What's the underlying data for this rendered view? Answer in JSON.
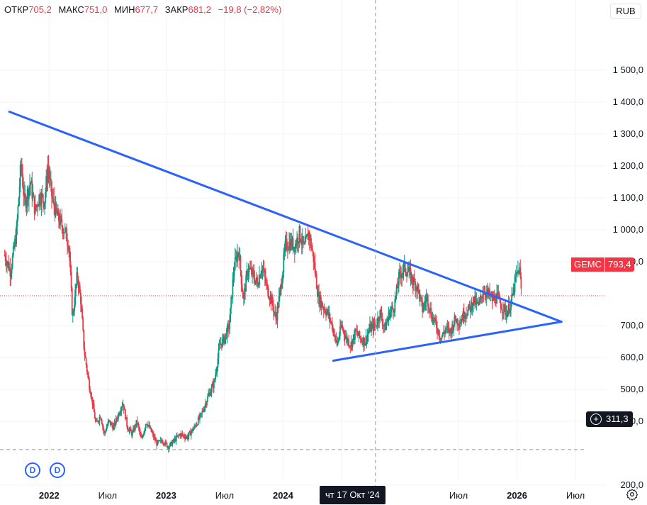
{
  "legend": {
    "open_label": "ОТКР",
    "open_value": "705,2",
    "high_label": "МАКС",
    "high_value": "751,0",
    "low_label": "МИН",
    "low_value": "677,7",
    "close_label": "ЗАКР",
    "close_value": "681,2",
    "change": "−19,8 (−2,82%)"
  },
  "currency": "RUB",
  "ticker": {
    "symbol": "GEMC",
    "price": "793,4"
  },
  "crosshair": {
    "price": "311,3",
    "date": "чт 17 Окт '24",
    "plus_icon": "+"
  },
  "events": [
    {
      "label": "D"
    },
    {
      "label": "D"
    }
  ],
  "colors": {
    "up": "#089981",
    "down": "#f23645",
    "trendline": "#2962ff",
    "crosshair": "#9598a1"
  },
  "icons": {
    "settings": "gear-icon"
  },
  "chart_data": {
    "type": "candlestick",
    "y_ticks": [
      {
        "value": 200,
        "label": "200,0"
      },
      {
        "value": 400,
        "label": "400,0"
      },
      {
        "value": 500,
        "label": "500,0"
      },
      {
        "value": 600,
        "label": "600,0"
      },
      {
        "value": 700,
        "label": "700,0"
      },
      {
        "value": 900,
        "label": "900,0"
      },
      {
        "value": 1000,
        "label": "1 000,0"
      },
      {
        "value": 1100,
        "label": "1 100,0"
      },
      {
        "value": 1200,
        "label": "1 200,0"
      },
      {
        "value": 1300,
        "label": "1 300,0"
      },
      {
        "value": 1400,
        "label": "1 400,0"
      },
      {
        "value": 1500,
        "label": "1 500,0"
      }
    ],
    "x_ticks": [
      {
        "value": 2022.0,
        "label": "2022",
        "bold": true
      },
      {
        "value": 2022.5,
        "label": "Июл",
        "bold": false
      },
      {
        "value": 2023.0,
        "label": "2023",
        "bold": true
      },
      {
        "value": 2023.5,
        "label": "Июл",
        "bold": false
      },
      {
        "value": 2024.0,
        "label": "2024",
        "bold": true
      },
      {
        "value": 2024.5,
        "label": "И",
        "bold": false
      },
      {
        "value": 2025.5,
        "label": "Июл",
        "bold": false
      },
      {
        "value": 2026.0,
        "label": "2026",
        "bold": true
      },
      {
        "value": 2026.5,
        "label": "Июл",
        "bold": false
      }
    ],
    "xlim": [
      2021.58,
      2026.76
    ],
    "ylim": [
      160,
      1560
    ],
    "last_price": 793.4,
    "crosshair": {
      "x": 2024.79,
      "y": 311.3
    },
    "trendlines": [
      {
        "x1": 2021.66,
        "y1": 1370,
        "x2": 2026.38,
        "y2": 712
      },
      {
        "x1": 2024.43,
        "y1": 590,
        "x2": 2026.38,
        "y2": 712
      }
    ],
    "price_path": [
      [
        2021.62,
        920
      ],
      [
        2021.67,
        870
      ],
      [
        2021.72,
        990
      ],
      [
        2021.76,
        1210
      ],
      [
        2021.79,
        1080
      ],
      [
        2021.84,
        1150
      ],
      [
        2021.88,
        1060
      ],
      [
        2021.92,
        1110
      ],
      [
        2021.96,
        1090
      ],
      [
        2021.99,
        1200
      ],
      [
        2022.02,
        1110
      ],
      [
        2022.06,
        1050
      ],
      [
        2022.1,
        1020
      ],
      [
        2022.14,
        990
      ],
      [
        2022.17,
        950
      ],
      [
        2022.2,
        720
      ],
      [
        2022.24,
        860
      ],
      [
        2022.27,
        780
      ],
      [
        2022.3,
        620
      ],
      [
        2022.34,
        520
      ],
      [
        2022.37,
        460
      ],
      [
        2022.4,
        390
      ],
      [
        2022.44,
        420
      ],
      [
        2022.47,
        360
      ],
      [
        2022.51,
        400
      ],
      [
        2022.55,
        380
      ],
      [
        2022.59,
        420
      ],
      [
        2022.63,
        460
      ],
      [
        2022.67,
        380
      ],
      [
        2022.71,
        360
      ],
      [
        2022.75,
        400
      ],
      [
        2022.79,
        340
      ],
      [
        2022.83,
        400
      ],
      [
        2022.87,
        370
      ],
      [
        2022.92,
        330
      ],
      [
        2022.97,
        340
      ],
      [
        2023.02,
        320
      ],
      [
        2023.07,
        340
      ],
      [
        2023.12,
        360
      ],
      [
        2023.18,
        350
      ],
      [
        2023.24,
        380
      ],
      [
        2023.3,
        420
      ],
      [
        2023.36,
        480
      ],
      [
        2023.41,
        520
      ],
      [
        2023.46,
        640
      ],
      [
        2023.5,
        660
      ],
      [
        2023.54,
        700
      ],
      [
        2023.58,
        880
      ],
      [
        2023.62,
        940
      ],
      [
        2023.66,
        780
      ],
      [
        2023.7,
        880
      ],
      [
        2023.74,
        860
      ],
      [
        2023.78,
        830
      ],
      [
        2023.82,
        890
      ],
      [
        2023.86,
        820
      ],
      [
        2023.9,
        780
      ],
      [
        2023.94,
        720
      ],
      [
        2023.98,
        820
      ],
      [
        2024.02,
        950
      ],
      [
        2024.06,
        960
      ],
      [
        2024.1,
        950
      ],
      [
        2024.14,
        990
      ],
      [
        2024.18,
        940
      ],
      [
        2024.22,
        990
      ],
      [
        2024.26,
        910
      ],
      [
        2024.3,
        790
      ],
      [
        2024.34,
        760
      ],
      [
        2024.38,
        740
      ],
      [
        2024.42,
        700
      ],
      [
        2024.46,
        640
      ],
      [
        2024.5,
        700
      ],
      [
        2024.54,
        660
      ],
      [
        2024.58,
        640
      ],
      [
        2024.62,
        680
      ],
      [
        2024.66,
        660
      ],
      [
        2024.7,
        650
      ],
      [
        2024.74,
        690
      ],
      [
        2024.79,
        700
      ],
      [
        2024.83,
        740
      ],
      [
        2024.87,
        690
      ],
      [
        2024.91,
        740
      ],
      [
        2024.95,
        760
      ],
      [
        2024.99,
        850
      ],
      [
        2025.03,
        880
      ],
      [
        2025.07,
        870
      ],
      [
        2025.11,
        840
      ],
      [
        2025.15,
        820
      ],
      [
        2025.19,
        750
      ],
      [
        2025.23,
        790
      ],
      [
        2025.27,
        730
      ],
      [
        2025.31,
        700
      ],
      [
        2025.35,
        660
      ],
      [
        2025.39,
        690
      ],
      [
        2025.43,
        680
      ],
      [
        2025.47,
        720
      ],
      [
        2025.51,
        710
      ],
      [
        2025.55,
        740
      ],
      [
        2025.59,
        750
      ],
      [
        2025.63,
        780
      ],
      [
        2025.67,
        760
      ],
      [
        2025.71,
        810
      ],
      [
        2025.75,
        800
      ],
      [
        2025.79,
        780
      ],
      [
        2025.83,
        790
      ],
      [
        2025.87,
        760
      ],
      [
        2025.91,
        740
      ],
      [
        2025.95,
        770
      ],
      [
        2025.99,
        850
      ],
      [
        2026.02,
        880
      ],
      [
        2026.04,
        793
      ]
    ]
  }
}
